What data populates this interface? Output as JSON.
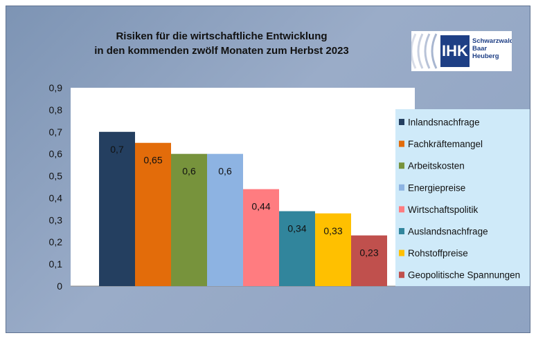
{
  "chart_data": {
    "type": "bar",
    "title_lines": [
      "Risiken für die wirtschaftliche Entwicklung",
      "in den kommenden zwölf Monaten zum Herbst 2023"
    ],
    "series": [
      {
        "name": "Inlandsnachfrage",
        "value": 0.7,
        "label": "0,7",
        "color": "#243f60"
      },
      {
        "name": "Fachkräftemangel",
        "value": 0.65,
        "label": "0,65",
        "color": "#e36c0a"
      },
      {
        "name": "Arbeitskosten",
        "value": 0.6,
        "label": "0,6",
        "color": "#77933c"
      },
      {
        "name": "Energiepreise",
        "value": 0.6,
        "label": "0,6",
        "color": "#8db3e2"
      },
      {
        "name": "Wirtschaftspolitik",
        "value": 0.44,
        "label": "0,44",
        "color": "#ff7c80"
      },
      {
        "name": "Auslandsnachfrage",
        "value": 0.34,
        "label": "0,34",
        "color": "#31859c"
      },
      {
        "name": "Rohstoffpreise",
        "value": 0.33,
        "label": "0,33",
        "color": "#ffc000"
      },
      {
        "name": "Geopolitische Spannungen",
        "value": 0.23,
        "label": "0,23",
        "color": "#c0504d"
      }
    ],
    "ylim": [
      0,
      0.9
    ],
    "yticks": [
      "0",
      "0,1",
      "0,2",
      "0,3",
      "0,4",
      "0,5",
      "0,6",
      "0,7",
      "0,8",
      "0,9"
    ],
    "grid": false,
    "legend_position": "right"
  },
  "logo": {
    "abbr": "IHK",
    "lines": [
      "Schwarzwald",
      "Baar",
      "Heuberg"
    ]
  }
}
